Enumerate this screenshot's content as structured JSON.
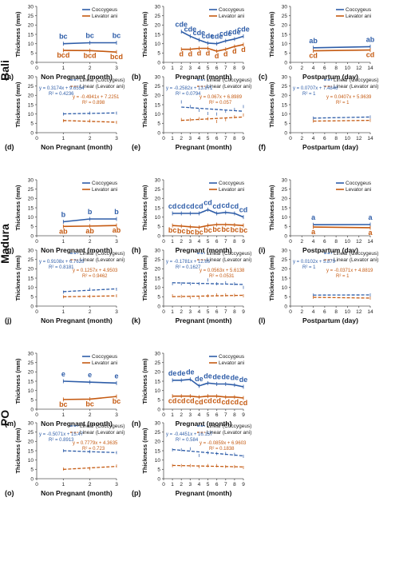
{
  "colors": {
    "coccygeus": "#2E5DA8",
    "levator": "#C55A11"
  },
  "groups": [
    "Bali",
    "Madura",
    "PO"
  ],
  "common": {
    "ylabel": "Thickness (mm)",
    "yticks": [
      "0",
      "5",
      "10",
      "15",
      "20",
      "25",
      "30"
    ],
    "legend": {
      "coccygeus": "Coccygeus",
      "levator": "Levator ani",
      "lin_coccygeus": "Linear (Coccygeus)",
      "lin_levator": "Linear (Levator ani)"
    }
  },
  "chart_data": [
    {
      "type": "line",
      "panel": "(a)",
      "group": "Bali",
      "xlabel": "Non Pregnant (month)",
      "x": [
        1,
        2,
        3
      ],
      "xlim": [
        0,
        3
      ],
      "xticks": [
        0,
        1,
        2,
        3
      ],
      "ylim": [
        0,
        30
      ],
      "legend_position": "top-right",
      "series": [
        {
          "name": "Coccygeus",
          "values": [
            10,
            10.5,
            10.5
          ],
          "labels": [
            "bc",
            "bc",
            "bc"
          ]
        },
        {
          "name": "Levator ani",
          "values": [
            6.4,
            6.3,
            5.5
          ],
          "labels": [
            "bcd",
            "bcd",
            "bcd"
          ]
        }
      ]
    },
    {
      "type": "line",
      "panel": "(b)",
      "group": "Bali",
      "xlabel": "Pregnant (month)",
      "x": [
        2,
        3,
        4,
        5,
        6,
        7,
        8,
        9
      ],
      "xlim": [
        0,
        9
      ],
      "xticks": [
        0,
        1,
        2,
        3,
        4,
        5,
        6,
        7,
        8,
        9
      ],
      "ylim": [
        0,
        30
      ],
      "legend_position": "top-right",
      "series": [
        {
          "name": "Coccygeus",
          "values": [
            16.5,
            14,
            12,
            10.3,
            10,
            11.5,
            12.5,
            14
          ],
          "labels": [
            "cde",
            "cde",
            "cde",
            "cde",
            "cde",
            "cde",
            "cde",
            "cde"
          ]
        },
        {
          "name": "Levator ani",
          "values": [
            7,
            7,
            7.5,
            7.5,
            6,
            7,
            8.5,
            9.5
          ],
          "labels": [
            "d",
            "d",
            "d",
            "d",
            "d",
            "d",
            "d",
            "d"
          ]
        }
      ]
    },
    {
      "type": "line",
      "panel": "(c)",
      "group": "Bali",
      "xlabel": "Postpartum (day)",
      "x": [
        4,
        14
      ],
      "xlim": [
        0,
        14
      ],
      "xticks": [
        0,
        2,
        4,
        6,
        8,
        10,
        12,
        14
      ],
      "ylim": [
        0,
        30
      ],
      "legend_position": "top-right",
      "series": [
        {
          "name": "Coccygeus",
          "values": [
            7.8,
            8.4
          ],
          "labels": [
            "ab",
            "ab"
          ]
        },
        {
          "name": "Levator ani",
          "values": [
            6.2,
            6.6
          ],
          "labels": [
            "cd",
            "cd"
          ]
        }
      ]
    },
    {
      "type": "line",
      "panel": "(d)",
      "group": "Bali",
      "xlabel": "Non Pregnant (month)",
      "x": [
        1,
        2,
        3
      ],
      "xlim": [
        0,
        3
      ],
      "xticks": [
        0,
        1,
        2,
        3
      ],
      "ylim": [
        0,
        30
      ],
      "legend_position": "top-right",
      "trendline": true,
      "series": [
        {
          "name": "Coccygeus",
          "values": [
            10,
            10.5,
            10.5
          ],
          "equation": "y = 0.3174x + 9.6554",
          "r2": "R² = 0.4236"
        },
        {
          "name": "Levator ani",
          "values": [
            6.4,
            6.3,
            5.5
          ],
          "equation": "y = -0.4941x + 7.2251",
          "r2": "R² = 0.898"
        }
      ]
    },
    {
      "type": "line",
      "panel": "(e)",
      "group": "Bali",
      "xlabel": "Pregnant (month)",
      "x": [
        2,
        3,
        4,
        5,
        6,
        7,
        8,
        9
      ],
      "xlim": [
        0,
        9
      ],
      "xticks": [
        0,
        1,
        2,
        3,
        4,
        5,
        6,
        7,
        8,
        9
      ],
      "ylim": [
        0,
        30
      ],
      "legend_position": "top-right",
      "trendline": true,
      "series": [
        {
          "name": "Coccygeus",
          "values": [
            16.5,
            14,
            12,
            10.3,
            10,
            11.5,
            12.5,
            14
          ],
          "equation": "y = -0.2582x + 13.871",
          "r2": "R² = 0.0794"
        },
        {
          "name": "Levator ani",
          "values": [
            7,
            7,
            7.5,
            7.5,
            6,
            7,
            8.5,
            9.5
          ],
          "equation": "y = 0.067x + 6.8989",
          "r2": "R² = 0.057"
        }
      ]
    },
    {
      "type": "line",
      "panel": "(f)",
      "group": "Bali",
      "xlabel": "Postpartum (day)",
      "x": [
        4,
        14
      ],
      "xlim": [
        0,
        14
      ],
      "xticks": [
        0,
        2,
        4,
        6,
        8,
        10,
        12,
        14
      ],
      "ylim": [
        0,
        30
      ],
      "legend_position": "top-right",
      "trendline": true,
      "series": [
        {
          "name": "Coccygeus",
          "values": [
            7.8,
            8.4
          ],
          "equation": "y = 0.0707x + 7.4846",
          "r2": "R² = 1"
        },
        {
          "name": "Levator ani",
          "values": [
            6.2,
            6.6
          ],
          "equation": "y = 0.0407x + 5.9639",
          "r2": "R² = 1"
        }
      ]
    },
    {
      "type": "line",
      "panel": "(g)",
      "group": "Madura",
      "xlabel": "Non Pregnant (month)",
      "x": [
        1,
        2,
        3
      ],
      "xlim": [
        0,
        3
      ],
      "xticks": [
        0,
        1,
        2,
        3
      ],
      "ylim": [
        0,
        30
      ],
      "legend_position": "top-right",
      "series": [
        {
          "name": "Coccygeus",
          "values": [
            7.5,
            9,
            9
          ],
          "labels": [
            "b",
            "b",
            "b"
          ]
        },
        {
          "name": "Levator ani",
          "values": [
            5,
            5.2,
            5.5
          ],
          "labels": [
            "ab",
            "ab",
            "ab"
          ]
        }
      ]
    },
    {
      "type": "line",
      "panel": "(h)",
      "group": "Madura",
      "xlabel": "Pregnant (month)",
      "x": [
        1,
        2,
        3,
        4,
        5,
        6,
        7,
        8,
        9
      ],
      "xlim": [
        0,
        9
      ],
      "xticks": [
        0,
        1,
        2,
        3,
        4,
        5,
        6,
        7,
        8,
        9
      ],
      "ylim": [
        0,
        30
      ],
      "legend_position": "top-right",
      "series": [
        {
          "name": "Coccygeus",
          "values": [
            12,
            12,
            12,
            12,
            14,
            12,
            12.5,
            12,
            10
          ],
          "labels": [
            "cd",
            "cd",
            "cd",
            "cd",
            "cd",
            "cd",
            "cd",
            "cd",
            "cd"
          ]
        },
        {
          "name": "Levator ani",
          "values": [
            5.5,
            5.2,
            4.8,
            4.5,
            5.5,
            6,
            6,
            5.8,
            5.5
          ],
          "labels": [
            "bc",
            "bc",
            "bc",
            "bc",
            "bc",
            "bc",
            "bc",
            "bc",
            "bc"
          ]
        }
      ]
    },
    {
      "type": "line",
      "panel": "(i)",
      "group": "Madura",
      "xlabel": "Postpartum (day)",
      "x": [
        4,
        14
      ],
      "xlim": [
        0,
        14
      ],
      "xticks": [
        0,
        2,
        4,
        6,
        8,
        10,
        12,
        14
      ],
      "ylim": [
        0,
        30
      ],
      "legend_position": "top-right",
      "series": [
        {
          "name": "Coccygeus",
          "values": [
            5.9,
            6
          ],
          "labels": [
            "a",
            "a"
          ]
        },
        {
          "name": "Levator ani",
          "values": [
            4.7,
            4.3
          ],
          "labels": [
            "a",
            "a"
          ]
        }
      ]
    },
    {
      "type": "line",
      "panel": "(j)",
      "group": "Madura",
      "xlabel": "Non Pregnant (month)",
      "x": [
        1,
        2,
        3
      ],
      "xlim": [
        0,
        3
      ],
      "xticks": [
        0,
        1,
        2,
        3
      ],
      "ylim": [
        0,
        30
      ],
      "legend_position": "top-right",
      "trendline": true,
      "series": [
        {
          "name": "Coccygeus",
          "values": [
            7.5,
            9,
            9
          ],
          "equation": "y = 0.9108x + 6.7625",
          "r2": "R² = 0.8181"
        },
        {
          "name": "Levator ani",
          "values": [
            5,
            5.2,
            5.5
          ],
          "equation": "y = 0.1257x + 4.9503",
          "r2": "R² = 0.9462"
        }
      ]
    },
    {
      "type": "line",
      "panel": "(k)",
      "group": "Madura",
      "xlabel": "Pregnant (month)",
      "x": [
        1,
        2,
        3,
        4,
        5,
        6,
        7,
        8,
        9
      ],
      "xlim": [
        0,
        9
      ],
      "xticks": [
        0,
        1,
        2,
        3,
        4,
        5,
        6,
        7,
        8,
        9
      ],
      "ylim": [
        0,
        30
      ],
      "legend_position": "top-right",
      "trendline": true,
      "series": [
        {
          "name": "Coccygeus",
          "values": [
            12,
            12,
            12,
            12,
            14,
            12,
            12.5,
            12,
            10
          ],
          "equation": "y = -0.1781x + 12.65",
          "r2": "R² = 0.1627"
        },
        {
          "name": "Levator ani",
          "values": [
            5.5,
            5.2,
            4.8,
            4.5,
            5.5,
            6,
            6,
            5.8,
            5.5
          ],
          "equation": "y = 0.0563x + 5.6138",
          "r2": "R² = 0.0531"
        }
      ]
    },
    {
      "type": "line",
      "panel": "(l)",
      "group": "Madura",
      "xlabel": "Postpartum (day)",
      "x": [
        4,
        14
      ],
      "xlim": [
        0,
        14
      ],
      "xticks": [
        0,
        2,
        4,
        6,
        8,
        10,
        12,
        14
      ],
      "ylim": [
        0,
        30
      ],
      "legend_position": "top-right",
      "trendline": true,
      "series": [
        {
          "name": "Coccygeus",
          "values": [
            5.9,
            6
          ],
          "equation": "y = 0.0102x + 5.879",
          "r2": "R² = 1"
        },
        {
          "name": "Levator ani",
          "values": [
            4.7,
            4.3
          ],
          "equation": "y = -0.0371x + 4.8819",
          "r2": "R² = 1"
        }
      ]
    },
    {
      "type": "line",
      "panel": "(m)",
      "group": "PO",
      "xlabel": "Non Pregnant (month)",
      "x": [
        1,
        2,
        3
      ],
      "xlim": [
        0,
        3
      ],
      "xticks": [
        0,
        1,
        2,
        3
      ],
      "ylim": [
        0,
        30
      ],
      "legend_position": "top-right",
      "series": [
        {
          "name": "Coccygeus",
          "values": [
            15,
            14.5,
            14
          ],
          "labels": [
            "e",
            "e",
            "e"
          ]
        },
        {
          "name": "Levator ani",
          "values": [
            5.2,
            5.4,
            6.8
          ],
          "labels": [
            "bc",
            "bc",
            "bc"
          ]
        }
      ]
    },
    {
      "type": "line",
      "panel": "(n)",
      "group": "PO",
      "xlabel": "Pregnant (month)",
      "x": [
        1,
        2,
        3,
        4,
        5,
        6,
        7,
        8,
        9
      ],
      "xlim": [
        0,
        9
      ],
      "xticks": [
        0,
        1,
        2,
        3,
        4,
        5,
        6,
        7,
        8,
        9
      ],
      "ylim": [
        0,
        30
      ],
      "legend_position": "top-right",
      "series": [
        {
          "name": "Coccygeus",
          "values": [
            15.5,
            15.5,
            16,
            12.5,
            14,
            13.5,
            13.5,
            13,
            12
          ],
          "labels": [
            "de",
            "de",
            "de",
            "de",
            "de",
            "de",
            "de",
            "de",
            "de"
          ]
        },
        {
          "name": "Levator ani",
          "values": [
            7,
            7,
            7,
            6.5,
            7,
            7,
            6.5,
            6.5,
            6
          ],
          "labels": [
            "cd",
            "cd",
            "cd",
            "cd",
            "cd",
            "cd",
            "cd",
            "cd",
            "cd"
          ]
        }
      ]
    },
    {
      "type": "line",
      "panel": "(o)",
      "group": "PO",
      "xlabel": "Non Pregnant (month)",
      "x": [
        1,
        2,
        3
      ],
      "xlim": [
        0,
        3
      ],
      "xticks": [
        0,
        1,
        2,
        3
      ],
      "ylim": [
        0,
        30
      ],
      "legend_position": "top-right",
      "trendline": true,
      "series": [
        {
          "name": "Coccygeus",
          "values": [
            15,
            14.5,
            14
          ],
          "equation": "y = -0.5071x + 15.47",
          "r2": "R² = 0.8913"
        },
        {
          "name": "Levator ani",
          "values": [
            5.2,
            5.4,
            6.8
          ],
          "equation": "y = 0.7779x + 4.3635",
          "r2": "R² = 0.723"
        }
      ]
    },
    {
      "type": "line",
      "panel": "(p)",
      "group": "PO",
      "xlabel": "Pregnant (month)",
      "x": [
        1,
        2,
        3,
        4,
        5,
        6,
        7,
        8,
        9
      ],
      "xlim": [
        0,
        9
      ],
      "xticks": [
        0,
        1,
        2,
        3,
        4,
        5,
        6,
        7,
        8,
        9
      ],
      "ylim": [
        0,
        30
      ],
      "legend_position": "top-right",
      "trendline": true,
      "series": [
        {
          "name": "Coccygeus",
          "values": [
            15.5,
            15.5,
            16,
            12.5,
            14,
            13.5,
            13.5,
            13,
            12
          ],
          "equation": "y = -0.4451x + 16.157",
          "r2": "R² = 0.584"
        },
        {
          "name": "Levator ani",
          "values": [
            7,
            7,
            7,
            6.5,
            7,
            7,
            6.5,
            6.5,
            6
          ],
          "equation": "y = -0.0859x + 6.9603",
          "r2": "R² = 0.1838"
        }
      ]
    }
  ]
}
